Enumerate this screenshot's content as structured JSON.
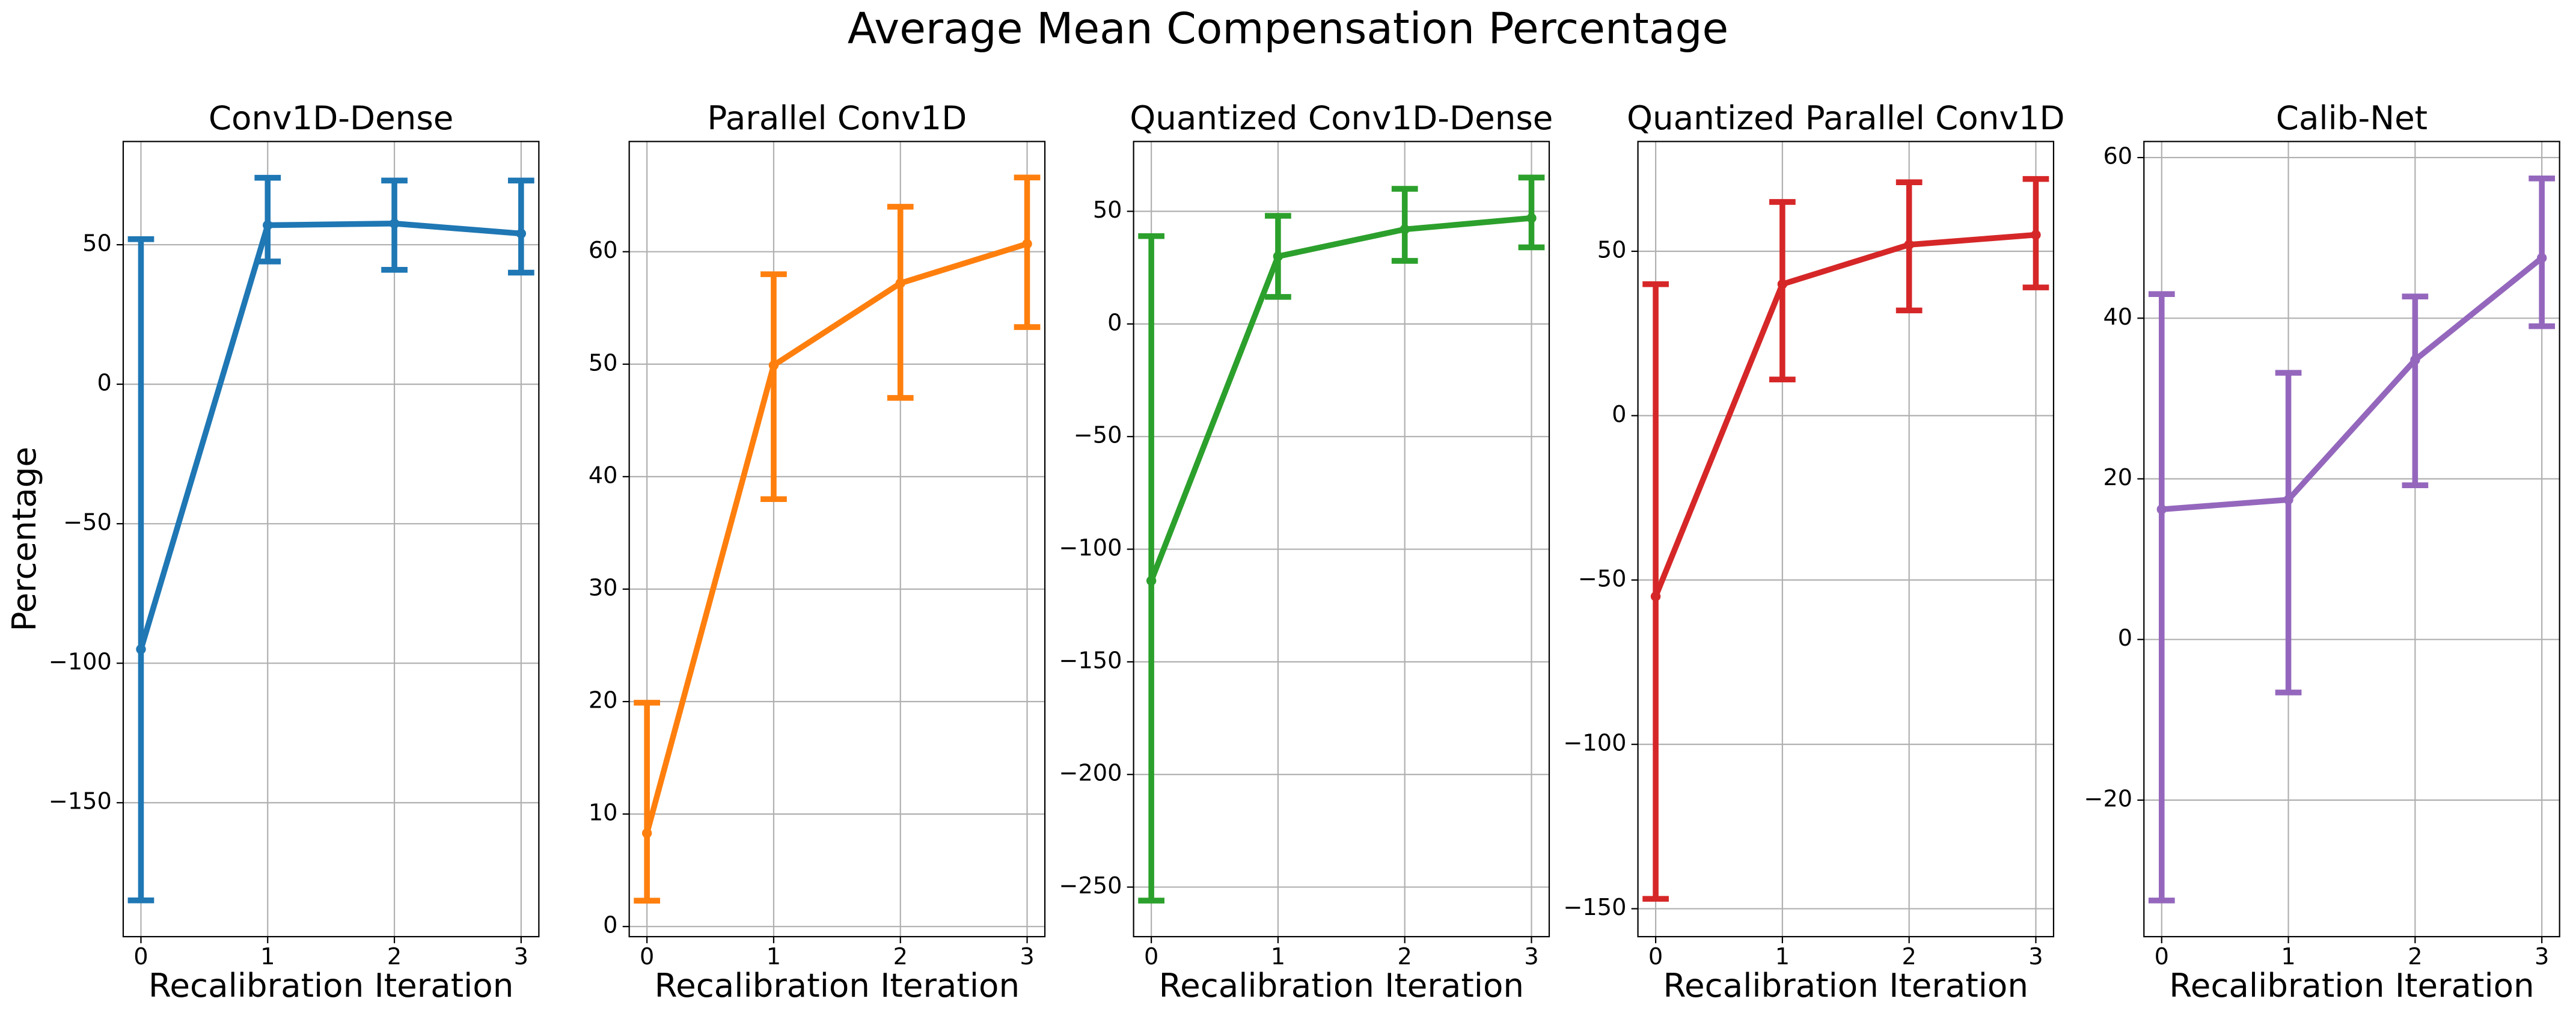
{
  "title": "Average Mean Compensation Percentage",
  "chart_data": [
    {
      "type": "line",
      "title": "Conv1D-Dense",
      "x_label": "Recalibration Iteration",
      "y_label": "Percentage",
      "grid": true,
      "x": [
        0,
        1,
        2,
        3
      ],
      "xlim": [
        -0.14,
        3.14
      ],
      "xticks": [
        0,
        1,
        2,
        3
      ],
      "ylim": [
        -198,
        87
      ],
      "yticks": [
        {
          "value": -150,
          "label": "−150"
        },
        {
          "value": -100,
          "label": "−100"
        },
        {
          "value": -50,
          "label": "−50"
        },
        0,
        50
      ],
      "series": [
        {
          "color": "#1f77b4",
          "values": [
            -95,
            57,
            57.6,
            54
          ],
          "lower": [
            -185,
            44,
            41,
            40
          ],
          "upper": [
            52,
            74,
            73,
            73
          ]
        }
      ]
    },
    {
      "type": "line",
      "title": "Parallel Conv1D",
      "x_label": "Recalibration Iteration",
      "grid": true,
      "x": [
        0,
        1,
        2,
        3
      ],
      "xlim": [
        -0.14,
        3.14
      ],
      "xticks": [
        0,
        1,
        2,
        3
      ],
      "ylim": [
        -0.9,
        69.8
      ],
      "yticks": [
        0,
        10,
        20,
        30,
        40,
        50,
        60
      ],
      "series": [
        {
          "color": "#ff7f0e",
          "values": [
            8.3,
            49.9,
            57.2,
            60.7
          ],
          "lower": [
            2.3,
            38,
            47,
            53.3
          ],
          "upper": [
            19.9,
            58,
            64,
            66.6
          ]
        }
      ]
    },
    {
      "type": "line",
      "title": "Quantized Conv1D-Dense",
      "x_label": "Recalibration Iteration",
      "grid": true,
      "x": [
        0,
        1,
        2,
        3
      ],
      "xlim": [
        -0.14,
        3.14
      ],
      "xticks": [
        0,
        1,
        2,
        3
      ],
      "ylim": [
        -272,
        81
      ],
      "yticks": [
        {
          "value": -250,
          "label": "−250"
        },
        {
          "value": -200,
          "label": "−200"
        },
        {
          "value": -150,
          "label": "−150"
        },
        {
          "value": -100,
          "label": "−100"
        },
        {
          "value": -50,
          "label": "−50"
        },
        0,
        50
      ],
      "series": [
        {
          "color": "#2ca02c",
          "values": [
            -114,
            30,
            42,
            47
          ],
          "lower": [
            -256,
            12,
            28,
            34
          ],
          "upper": [
            39,
            48,
            60,
            65
          ]
        }
      ]
    },
    {
      "type": "line",
      "title": "Quantized Parallel Conv1D",
      "x_label": "Recalibration Iteration",
      "grid": true,
      "x": [
        0,
        1,
        2,
        3
      ],
      "xlim": [
        -0.14,
        3.14
      ],
      "xticks": [
        0,
        1,
        2,
        3
      ],
      "ylim": [
        -158.5,
        83.4
      ],
      "yticks": [
        {
          "value": -150,
          "label": "−150"
        },
        {
          "value": -100,
          "label": "−100"
        },
        {
          "value": -50,
          "label": "−50"
        },
        0,
        50
      ],
      "series": [
        {
          "color": "#d62728",
          "values": [
            -55,
            40,
            52,
            55
          ],
          "lower": [
            -147,
            11,
            32,
            39
          ],
          "upper": [
            40,
            65,
            71,
            72
          ]
        }
      ]
    },
    {
      "type": "line",
      "title": "Calib-Net",
      "x_label": "Recalibration Iteration",
      "grid": true,
      "x": [
        0,
        1,
        2,
        3
      ],
      "xlim": [
        -0.14,
        3.14
      ],
      "xticks": [
        0,
        1,
        2,
        3
      ],
      "ylim": [
        -37,
        62
      ],
      "yticks": [
        {
          "value": -20,
          "label": "−20"
        },
        0,
        20,
        40,
        60
      ],
      "series": [
        {
          "color": "#9467bd",
          "values": [
            16.2,
            17.4,
            34.8,
            47.5
          ],
          "lower": [
            -32.5,
            -6.6,
            19.2,
            39
          ],
          "upper": [
            43,
            33.2,
            42.7,
            57.4
          ]
        }
      ]
    }
  ]
}
